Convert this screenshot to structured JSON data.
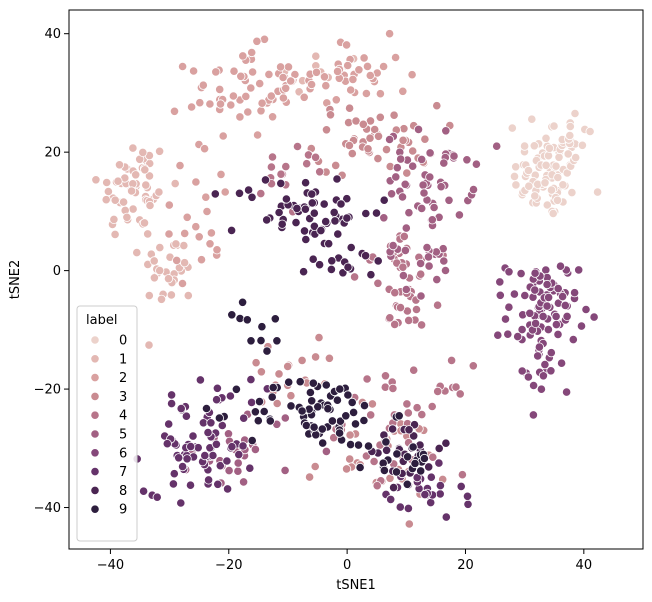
{
  "chart_data": {
    "type": "scatter",
    "title": "",
    "xlabel": "tSNE1",
    "ylabel": "tSNE2",
    "xlim": [
      -47,
      50
    ],
    "ylim": [
      -47,
      44
    ],
    "xticks": [
      -40,
      -20,
      0,
      20,
      40
    ],
    "yticks": [
      -40,
      -20,
      0,
      20,
      40
    ],
    "grid": false,
    "legend_title": "label",
    "legend_position": "lower-left",
    "series": [
      {
        "name": "0",
        "color": "#ecd2cb",
        "clusters": [
          {
            "cx": 34,
            "cy": 16,
            "sx": 4,
            "sy": 5,
            "n": 80
          },
          {
            "cx": 37,
            "cy": 23,
            "sx": 3,
            "sy": 3,
            "n": 20
          }
        ]
      },
      {
        "name": "1",
        "color": "#e3b8b3",
        "clusters": [
          {
            "cx": -36,
            "cy": 14,
            "sx": 4,
            "sy": 6,
            "n": 60
          },
          {
            "cx": -30,
            "cy": 0,
            "sx": 3,
            "sy": 4,
            "n": 30
          },
          {
            "cx": -5,
            "cy": 33,
            "sx": 5,
            "sy": 3,
            "n": 10
          }
        ]
      },
      {
        "name": "2",
        "color": "#d9a1a0",
        "clusters": [
          {
            "cx": -18,
            "cy": 30,
            "sx": 6,
            "sy": 5,
            "n": 55
          },
          {
            "cx": 0,
            "cy": 33,
            "sx": 7,
            "sy": 4,
            "n": 45
          },
          {
            "cx": -25,
            "cy": 10,
            "sx": 5,
            "sy": 7,
            "n": 20
          }
        ]
      },
      {
        "name": "3",
        "color": "#c98b91",
        "clusters": [
          {
            "cx": 5,
            "cy": 22,
            "sx": 7,
            "sy": 4,
            "n": 50
          },
          {
            "cx": 5,
            "cy": -32,
            "sx": 8,
            "sy": 5,
            "n": 30
          },
          {
            "cx": -10,
            "cy": -18,
            "sx": 6,
            "sy": 5,
            "n": 20
          }
        ]
      },
      {
        "name": "4",
        "color": "#b7758a",
        "clusters": [
          {
            "cx": 10,
            "cy": -25,
            "sx": 7,
            "sy": 6,
            "n": 40
          },
          {
            "cx": 10,
            "cy": -5,
            "sx": 4,
            "sy": 5,
            "n": 25
          },
          {
            "cx": -8,
            "cy": 15,
            "sx": 6,
            "sy": 4,
            "n": 15
          },
          {
            "cx": 9,
            "cy": 2,
            "sx": 5,
            "sy": 4,
            "n": 20
          }
        ]
      },
      {
        "name": "5",
        "color": "#a26083",
        "clusters": [
          {
            "cx": 14,
            "cy": 16,
            "sx": 5,
            "sy": 5,
            "n": 50
          },
          {
            "cx": 12,
            "cy": 3,
            "sx": 4,
            "sy": 5,
            "n": 25
          },
          {
            "cx": -17,
            "cy": -30,
            "sx": 6,
            "sy": 5,
            "n": 25
          }
        ]
      },
      {
        "name": "6",
        "color": "#85487a",
        "clusters": [
          {
            "cx": 33,
            "cy": -7,
            "sx": 4,
            "sy": 6,
            "n": 90
          },
          {
            "cx": 32,
            "cy": -18,
            "sx": 3,
            "sy": 3,
            "n": 10
          }
        ]
      },
      {
        "name": "7",
        "color": "#65336a",
        "clusters": [
          {
            "cx": -25,
            "cy": -30,
            "sx": 6,
            "sy": 5,
            "n": 65
          },
          {
            "cx": 12,
            "cy": -38,
            "sx": 5,
            "sy": 3,
            "n": 25
          },
          {
            "cx": -20,
            "cy": -22,
            "sx": 5,
            "sy": 4,
            "n": 10
          }
        ]
      },
      {
        "name": "8",
        "color": "#4a2552",
        "clusters": [
          {
            "cx": -7,
            "cy": 10,
            "sx": 8,
            "sy": 4,
            "n": 60
          },
          {
            "cx": 0,
            "cy": 2,
            "sx": 4,
            "sy": 3,
            "n": 15
          },
          {
            "cx": 10,
            "cy": -30,
            "sx": 4,
            "sy": 4,
            "n": 25
          }
        ]
      },
      {
        "name": "9",
        "color": "#2d1e3e",
        "clusters": [
          {
            "cx": -5,
            "cy": -24,
            "sx": 8,
            "sy": 4,
            "n": 70
          },
          {
            "cx": 9,
            "cy": -32,
            "sx": 4,
            "sy": 3,
            "n": 20
          },
          {
            "cx": -15,
            "cy": -10,
            "sx": 3,
            "sy": 3,
            "n": 10
          }
        ]
      }
    ]
  }
}
